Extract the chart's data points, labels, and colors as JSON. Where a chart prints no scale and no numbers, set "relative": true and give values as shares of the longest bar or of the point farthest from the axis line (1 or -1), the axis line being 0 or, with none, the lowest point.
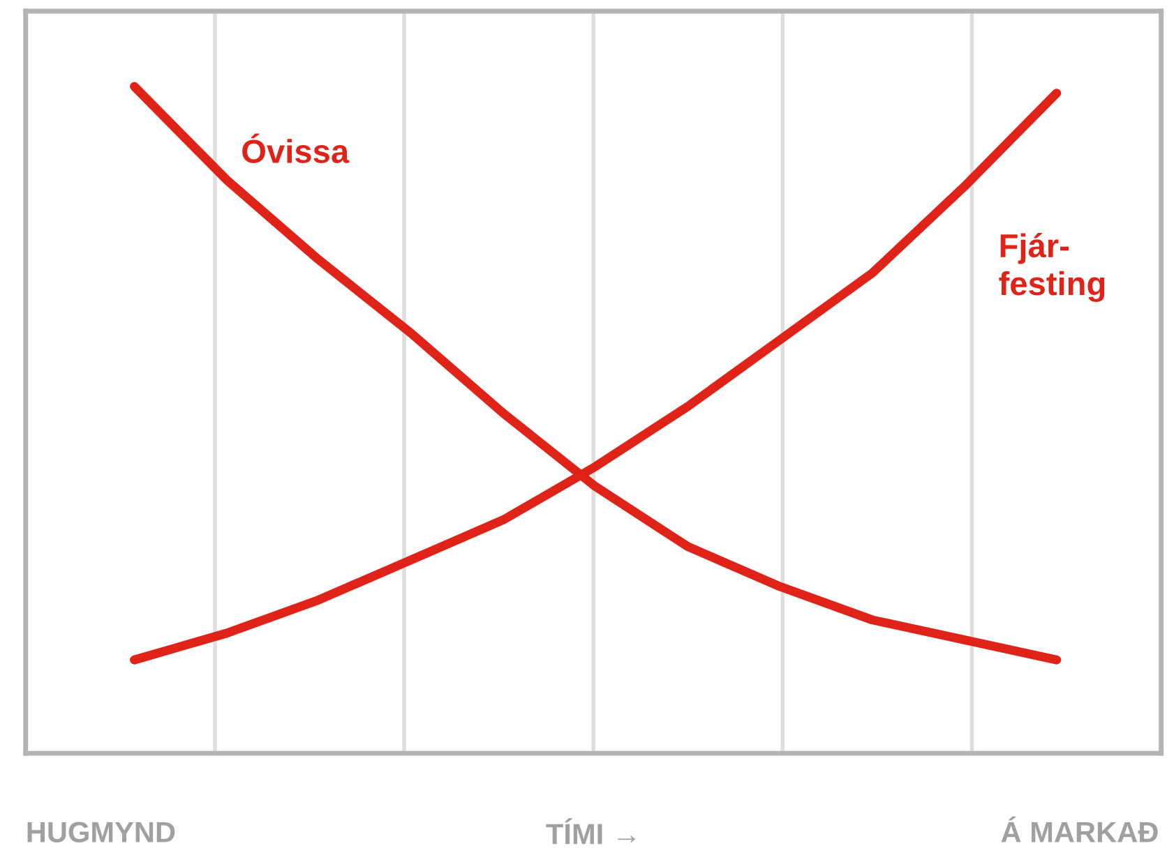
{
  "chart_data": {
    "type": "line",
    "relative": true,
    "xlabel": "TÍMI →",
    "annotations": [
      "HUGMYND",
      "Á MARKAÐ"
    ],
    "categories": [
      null,
      null,
      null,
      null,
      null,
      null,
      null,
      null,
      null,
      null,
      null
    ],
    "grid": "x",
    "tick_labels": false,
    "legend": false,
    "marker": "none",
    "line_style": "solid",
    "series": [
      {
        "name": "Óvissa",
        "color": "#e02319",
        "values": [
          1.0,
          0.86,
          0.74,
          0.63,
          0.51,
          0.4,
          0.31,
          0.25,
          0.2,
          0.17,
          0.14
        ]
      },
      {
        "name": "Fjár-\nfesting",
        "color": "#e02319",
        "values": [
          0.14,
          0.18,
          0.23,
          0.29,
          0.35,
          0.43,
          0.52,
          0.62,
          0.72,
          0.85,
          0.99
        ]
      }
    ]
  }
}
